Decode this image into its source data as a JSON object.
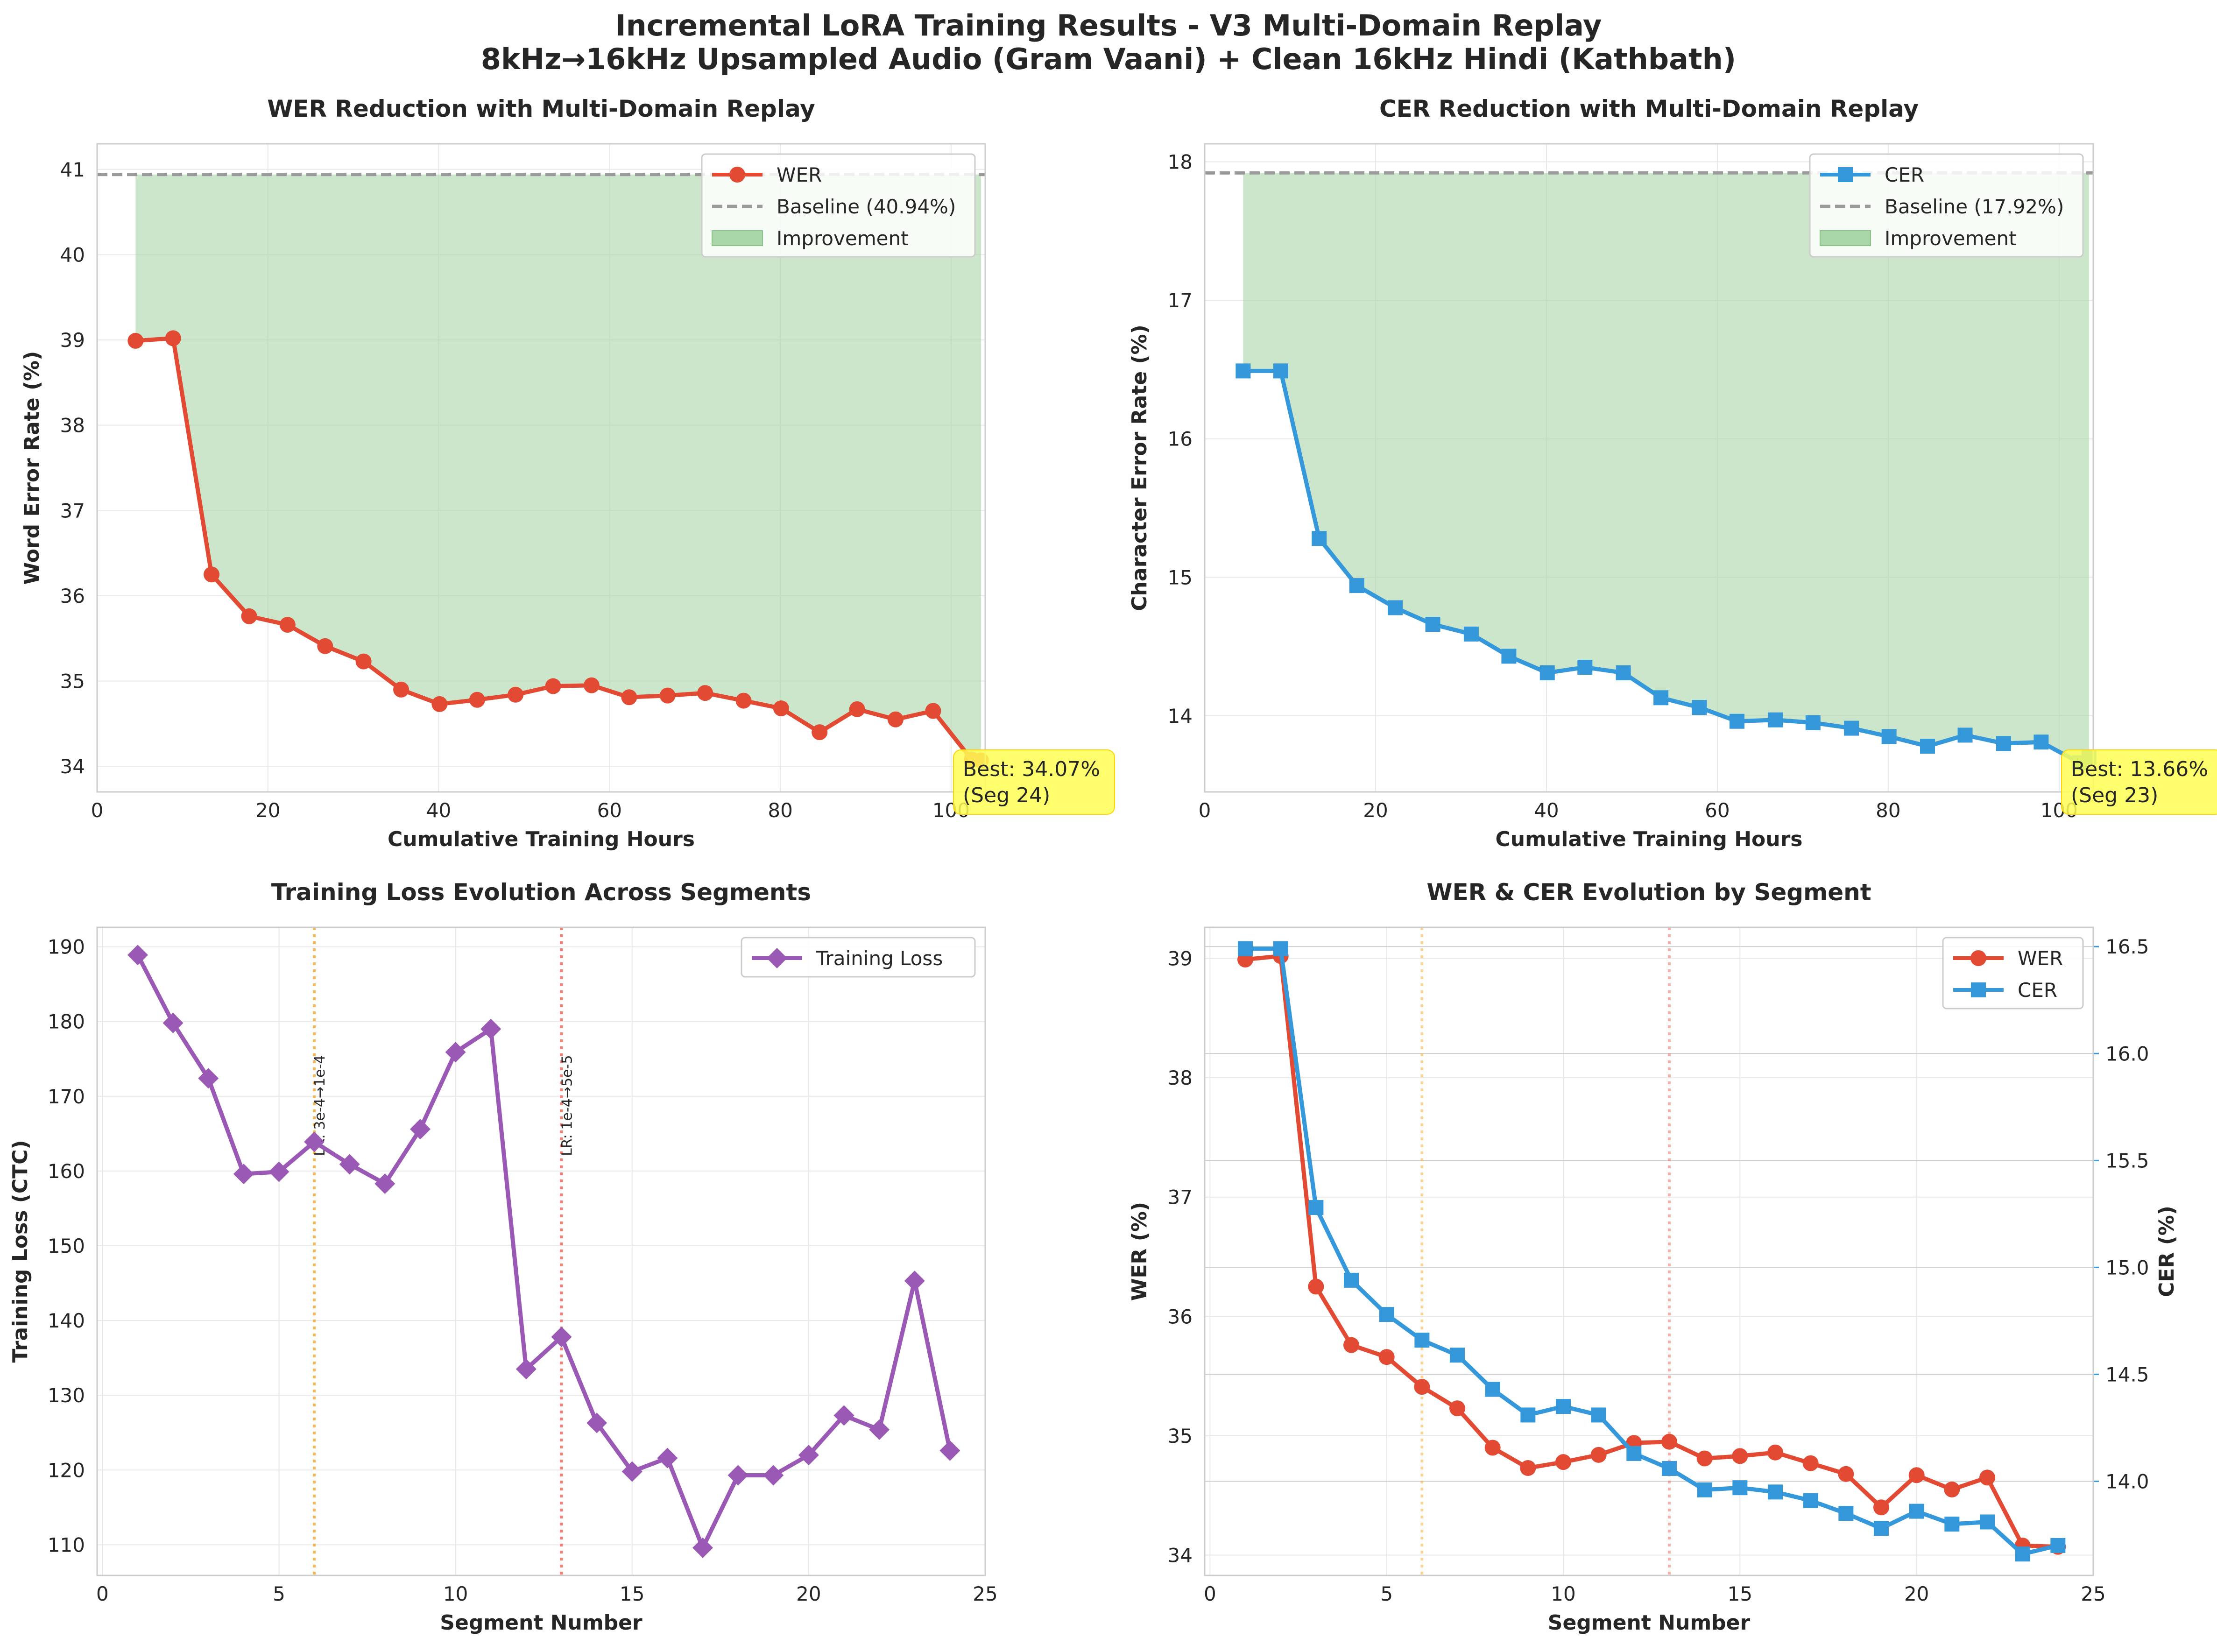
{
  "suptitle": {
    "line1": "Incremental LoRA Training Results - V3 Multi-Domain Replay",
    "line2": "8kHz→16kHz Upsampled Audio (Gram Vaani) + Clean 16kHz Hindi (Kathbath)"
  },
  "colors": {
    "wer": "#e24a33",
    "cer": "#3498db",
    "loss": "#9b59b6",
    "baseline": "#999999",
    "improvement_fill": "#a9d6a9",
    "lr_change_1": "#f5b041",
    "lr_change_2": "#ec7063",
    "best_box": "#ffff55"
  },
  "chart_data": [
    {
      "type": "line",
      "title": "WER Reduction with Multi-Domain Replay",
      "xlabel": "Cumulative Training Hours",
      "ylabel": "Word Error Rate (%)",
      "xlim": [
        0,
        104
      ],
      "ylim": [
        33.7,
        41.3
      ],
      "xticks": [
        "0",
        "20",
        "40",
        "60",
        "80",
        "100"
      ],
      "yticks": [
        "34",
        "35",
        "36",
        "37",
        "38",
        "39",
        "40",
        "41"
      ],
      "grid": true,
      "legend_position": "upper right",
      "x": [
        4.5,
        8.9,
        13.4,
        17.8,
        22.3,
        26.7,
        31.2,
        35.6,
        40.1,
        44.5,
        49.0,
        53.4,
        57.9,
        62.3,
        66.8,
        71.2,
        75.7,
        80.1,
        84.6,
        89.0,
        93.5,
        97.9,
        102.4,
        103.5
      ],
      "series": [
        {
          "name": "WER",
          "marker": "circle",
          "values": [
            38.99,
            39.02,
            36.25,
            35.76,
            35.66,
            35.41,
            35.23,
            34.9,
            34.73,
            34.78,
            34.84,
            34.94,
            34.95,
            34.81,
            34.83,
            34.86,
            34.77,
            34.68,
            34.4,
            34.67,
            34.55,
            34.65,
            34.08,
            34.07
          ]
        }
      ],
      "baseline": {
        "label": "Baseline (40.94%)",
        "value": 40.94
      },
      "fill_label": "Improvement",
      "best_annotation": {
        "line1": "Best: 34.07%",
        "line2": "(Seg 24)"
      }
    },
    {
      "type": "line",
      "title": "CER Reduction with Multi-Domain Replay",
      "xlabel": "Cumulative Training Hours",
      "ylabel": "Character Error Rate (%)",
      "xlim": [
        0,
        104
      ],
      "ylim": [
        13.45,
        18.13
      ],
      "xticks": [
        "0",
        "20",
        "40",
        "60",
        "80",
        "100"
      ],
      "yticks": [
        "14",
        "15",
        "16",
        "17",
        "18"
      ],
      "grid": true,
      "legend_position": "upper right",
      "x": [
        4.5,
        8.9,
        13.4,
        17.8,
        22.3,
        26.7,
        31.2,
        35.6,
        40.1,
        44.5,
        49.0,
        53.4,
        57.9,
        62.3,
        66.8,
        71.2,
        75.7,
        80.1,
        84.6,
        89.0,
        93.5,
        97.9,
        102.4,
        103.5
      ],
      "series": [
        {
          "name": "CER",
          "marker": "square",
          "values": [
            16.49,
            16.49,
            15.28,
            14.94,
            14.78,
            14.66,
            14.59,
            14.43,
            14.31,
            14.35,
            14.31,
            14.13,
            14.06,
            13.96,
            13.97,
            13.95,
            13.91,
            13.85,
            13.78,
            13.86,
            13.8,
            13.81,
            13.66,
            13.7
          ]
        }
      ],
      "baseline": {
        "label": "Baseline (17.92%)",
        "value": 17.92
      },
      "fill_label": "Improvement",
      "best_annotation": {
        "line1": "Best: 13.66%",
        "line2": "(Seg 23)"
      }
    },
    {
      "type": "line",
      "title": "Training Loss Evolution Across Segments",
      "xlabel": "Segment Number",
      "ylabel": "Training Loss (CTC)",
      "xlim": [
        -0.15,
        25
      ],
      "ylim": [
        105.9,
        192.6
      ],
      "xticks": [
        "0",
        "5",
        "10",
        "15",
        "20",
        "25"
      ],
      "yticks": [
        "110",
        "120",
        "130",
        "140",
        "150",
        "160",
        "170",
        "180",
        "190"
      ],
      "grid": true,
      "legend_position": "upper right",
      "x": [
        1,
        2,
        3,
        4,
        5,
        6,
        7,
        8,
        9,
        10,
        11,
        12,
        13,
        14,
        15,
        16,
        17,
        18,
        19,
        20,
        21,
        22,
        23,
        24
      ],
      "series": [
        {
          "name": "Training Loss",
          "marker": "diamond",
          "values": [
            188.9,
            179.8,
            172.4,
            159.6,
            159.9,
            163.9,
            160.9,
            158.3,
            165.6,
            175.9,
            179.0,
            133.5,
            137.8,
            126.3,
            119.8,
            121.6,
            109.6,
            119.3,
            119.3,
            122.0,
            127.3,
            125.4,
            145.3,
            122.6
          ]
        }
      ],
      "lr_changes": [
        {
          "segment": 6,
          "label": "LR: 3e-4→1e-4"
        },
        {
          "segment": 13,
          "label": "LR: 1e-4→5e-5"
        }
      ]
    },
    {
      "type": "line",
      "title": "WER & CER Evolution by Segment",
      "xlabel": "Segment Number",
      "ylabel_left": "WER (%)",
      "ylabel_right": "CER (%)",
      "xlim": [
        -0.15,
        25
      ],
      "ylim_left": [
        33.83,
        39.26
      ],
      "ylim_right": [
        13.56,
        16.59
      ],
      "xticks": [
        "0",
        "5",
        "10",
        "15",
        "20",
        "25"
      ],
      "yticks_left": [
        "34",
        "35",
        "36",
        "37",
        "38",
        "39"
      ],
      "yticks_right": [
        "14.0",
        "14.5",
        "15.0",
        "15.5",
        "16.0",
        "16.5"
      ],
      "grid": true,
      "legend_position": "upper right",
      "x": [
        1,
        2,
        3,
        4,
        5,
        6,
        7,
        8,
        9,
        10,
        11,
        12,
        13,
        14,
        15,
        16,
        17,
        18,
        19,
        20,
        21,
        22,
        23,
        24
      ],
      "series": [
        {
          "name": "WER",
          "axis": "left",
          "marker": "circle",
          "values": [
            38.99,
            39.02,
            36.25,
            35.76,
            35.66,
            35.41,
            35.23,
            34.9,
            34.73,
            34.78,
            34.84,
            34.94,
            34.95,
            34.81,
            34.83,
            34.86,
            34.77,
            34.68,
            34.4,
            34.67,
            34.55,
            34.65,
            34.08,
            34.07
          ]
        },
        {
          "name": "CER",
          "axis": "right",
          "marker": "square",
          "values": [
            16.49,
            16.49,
            15.28,
            14.94,
            14.78,
            14.66,
            14.59,
            14.43,
            14.31,
            14.35,
            14.31,
            14.13,
            14.06,
            13.96,
            13.97,
            13.95,
            13.91,
            13.85,
            13.78,
            13.86,
            13.8,
            13.81,
            13.66,
            13.7
          ]
        }
      ],
      "lr_change_segments": [
        6,
        13
      ]
    }
  ]
}
